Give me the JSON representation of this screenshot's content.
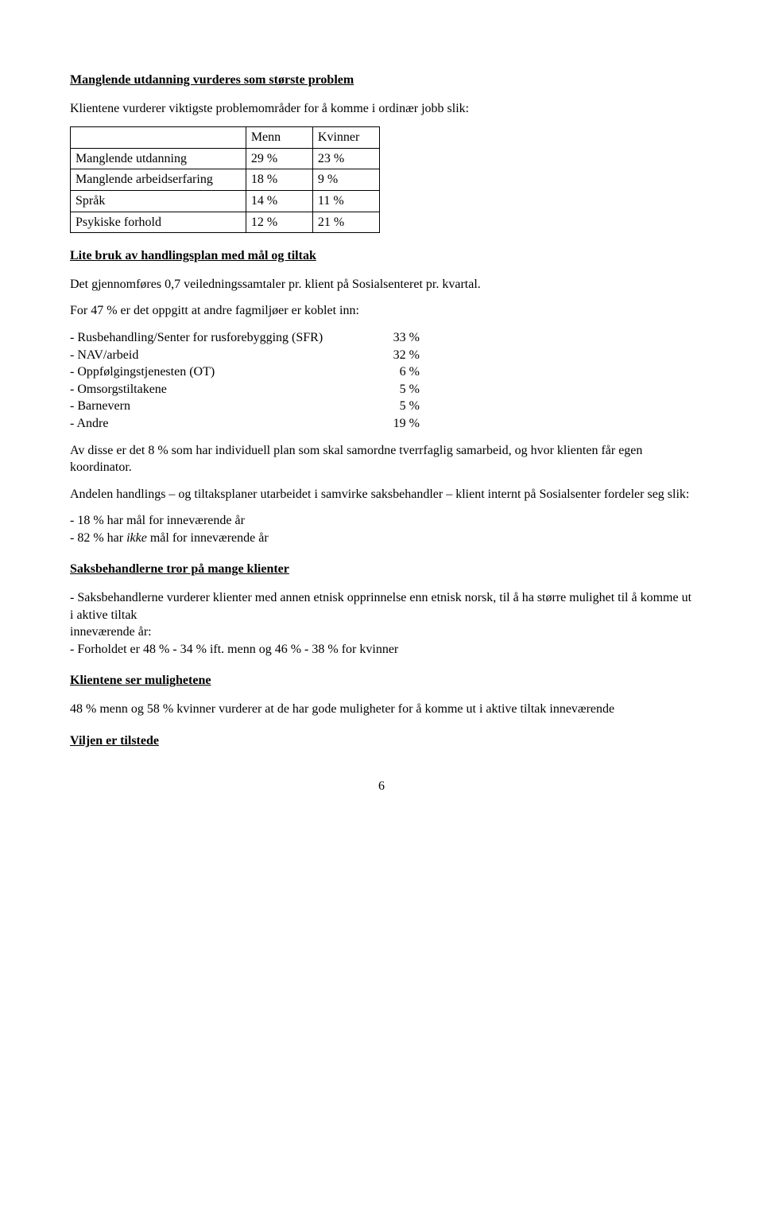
{
  "headings": {
    "h1": "Manglende utdanning vurderes som største problem",
    "h2": "Lite bruk av handlingsplan med mål og tiltak",
    "h3": "Saksbehandlerne tror på mange klienter",
    "h4": "Klientene ser mulighetene",
    "h5": "Viljen er tilstede"
  },
  "intro1": "Klientene vurderer viktigste problemområder for å komme i ordinær jobb slik:",
  "table1": {
    "col_menn": "Menn",
    "col_kvinner": "Kvinner",
    "rows": [
      {
        "label": "Manglende utdanning",
        "menn": "29 %",
        "kvinner": "23 %"
      },
      {
        "label": "Manglende arbeidserfaring",
        "menn": "18 %",
        "kvinner": "9 %"
      },
      {
        "label": "Språk",
        "menn": "14 %",
        "kvinner": "11 %"
      },
      {
        "label": "Psykiske forhold",
        "menn": "12 %",
        "kvinner": "21 %"
      }
    ]
  },
  "para1": "Det gjennomføres 0,7 veiledningssamtaler pr. klient på Sosialsenteret pr. kvartal.",
  "para2": "For 47 % er det oppgitt at andre fagmiljøer er koblet inn:",
  "services": [
    {
      "label": "- Rusbehandling/Senter for rusforebygging (SFR)",
      "val": "33 %"
    },
    {
      "label": "- NAV/arbeid",
      "val": "32 %"
    },
    {
      "label": "- Oppfølgingstjenesten (OT)",
      "val": "6 %"
    },
    {
      "label": "- Omsorgstiltakene",
      "val": "5 %"
    },
    {
      "label": "- Barnevern",
      "val": "5 %"
    },
    {
      "label": "- Andre",
      "val": "19 %"
    }
  ],
  "para3": "Av disse er det 8 % som har individuell plan som skal samordne tverrfaglig samarbeid, og hvor klienten får egen koordinator.",
  "para4": "Andelen handlings – og tiltaksplaner utarbeidet i samvirke saksbehandler – klient internt på Sosialsenter fordeler seg slik:",
  "bullets1": {
    "b1_pre": "- 18 % har mål for inneværende år",
    "b2_pre": "- 82 % har ",
    "b2_it": "ikke",
    "b2_post": " mål for inneværende år"
  },
  "para5a": "- Saksbehandlerne vurderer klienter med annen etnisk opprinnelse enn etnisk norsk, til å ha større mulighet til å komme ut i aktive tiltak",
  "para5b": "inneværende år:",
  "para5c": "- Forholdet er 48 % - 34 % ift. menn og 46 % - 38 % for kvinner",
  "para6": "48 % menn og 58 % kvinner vurderer at de har gode muligheter for å komme ut i aktive tiltak inneværende",
  "page_num": "6"
}
